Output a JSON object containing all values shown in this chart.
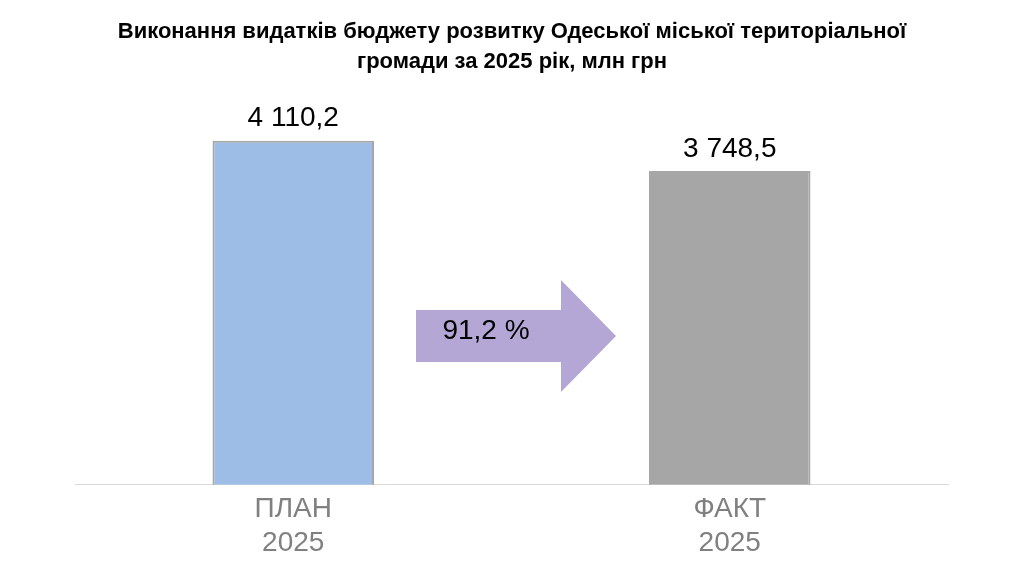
{
  "chart_data": {
    "type": "bar",
    "title": "Виконання видатків бюджету  розвитку Одеської міської територіальної громади за 2025 рік, млн грн",
    "categories": [
      "ПЛАН 2025",
      "ФАКТ 2025"
    ],
    "values": [
      4110.2,
      3748.5
    ],
    "colors": [
      "#9dbde6",
      "#a6a6a6"
    ],
    "value_labels": [
      "4 110,2",
      "3 748,5"
    ],
    "annotations": [
      "91,2 %"
    ],
    "grid": false,
    "legend": false
  }
}
